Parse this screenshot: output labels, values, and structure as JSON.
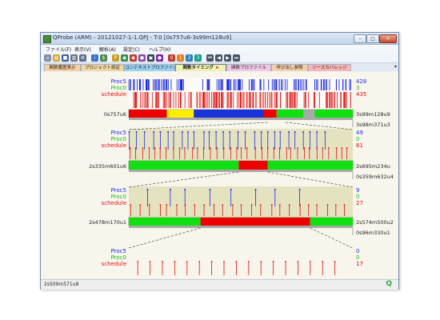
{
  "window": {
    "title": "QProbe (ARM) - 20121027-1-1.QPJ - T:0 [0s757u6-3s99m128u9]",
    "minimize": "–",
    "maximize": "□",
    "close": "×"
  },
  "menu": [
    "ファイル(F)",
    "表示(V)",
    "解析(A)",
    "設定(C)",
    "ヘルプ(H)"
  ],
  "toolbar": {
    "items": [
      {
        "icon": "new-file-icon",
        "glyph": "▫",
        "color": "#7f8fa8"
      },
      {
        "icon": "open-folder-icon",
        "glyph": "▤",
        "color": "#d2a636"
      },
      {
        "icon": "save-icon",
        "glyph": "■",
        "color": "#385f9c"
      },
      {
        "icon": "print-icon",
        "glyph": "▥",
        "color": "#6b7380"
      },
      {
        "icon": "gear-icon",
        "glyph": "⚙",
        "color": "#5b6e8c"
      },
      {
        "icon": "info-icon",
        "glyph": "i",
        "color": "#3b72c4"
      },
      {
        "icon": "dollar-icon",
        "glyph": "$",
        "color": "#4f8a4f"
      },
      {
        "icon": "p-icon",
        "glyph": "P",
        "color": "#c8a020"
      },
      {
        "icon": "profile-icon",
        "glyph": "◉",
        "color": "#2e8b57"
      },
      {
        "icon": "capture-icon",
        "glyph": "◉",
        "color": "#c0392b"
      },
      {
        "icon": "record-icon",
        "glyph": "●",
        "color": "#8e44ad"
      },
      {
        "icon": "chart-icon",
        "glyph": "▣",
        "color": "#2c3e50"
      },
      {
        "icon": "stop-icon",
        "glyph": "●",
        "color": "#7b1fa2"
      },
      {
        "icon": "marker-0-icon",
        "glyph": "0",
        "color": "#c0392b"
      },
      {
        "icon": "marker-1-icon",
        "glyph": "1",
        "color": "#e67e22"
      },
      {
        "icon": "marker-2-icon",
        "glyph": "2",
        "color": "#2980b9"
      },
      {
        "icon": "marker-3-icon",
        "glyph": "3",
        "color": "#16a085"
      },
      {
        "icon": "first-icon",
        "glyph": "⏮",
        "color": "#445566"
      },
      {
        "icon": "prev-icon",
        "glyph": "◀",
        "color": "#445566"
      },
      {
        "icon": "next-icon",
        "glyph": "▶",
        "color": "#445566"
      },
      {
        "icon": "last-icon",
        "glyph": "⏭",
        "color": "#445566"
      }
    ]
  },
  "tabs": [
    {
      "label": "関数履歴表示",
      "color": "#f7cfa3"
    },
    {
      "label": "プロジェクト設定",
      "color": "#f3d6a2"
    },
    {
      "label": "コンテキストプロファイル",
      "color": "#9ad0f0"
    },
    {
      "label": "関数タイミング",
      "color": "#f2f2b0",
      "active": true,
      "close": "×"
    },
    {
      "label": "関数プロファイル",
      "color": "#f3c8e6"
    },
    {
      "label": "呼び出し参照",
      "color": "#f6cfa8"
    },
    {
      "label": "ソースカバレッジ",
      "color": "#f7b6b6"
    }
  ],
  "tab_overflow": "▾",
  "colors": {
    "proc5": "#1f2de0",
    "proc0": "#1dbb1d",
    "schedule": "#e01010",
    "bar_red": "#ee0000",
    "bar_green": "#10e010",
    "bar_yellow": "#ffee00",
    "bar_blue": "#1a33d6",
    "bar_gray": "#a8a8a8",
    "panel_fill": "#d6d29c"
  },
  "panels": [
    {
      "rows": [
        {
          "label": "Proc5",
          "value": "428",
          "color": "#1f2de0"
        },
        {
          "label": "Proc0",
          "value": "3",
          "color": "#1dbb1d"
        },
        {
          "label": "schedule",
          "value": "435",
          "color": "#e01010"
        }
      ],
      "start": "0s757u6",
      "end": "3s99m128u9",
      "span": "3s98m371u3",
      "bar": [
        {
          "from": 0,
          "to": 0.17,
          "c": "bar_red"
        },
        {
          "from": 0.17,
          "to": 0.29,
          "c": "bar_yellow"
        },
        {
          "from": 0.29,
          "to": 0.6,
          "c": "bar_blue"
        },
        {
          "from": 0.6,
          "to": 0.66,
          "c": "bar_red"
        },
        {
          "from": 0.66,
          "to": 0.78,
          "c": "bar_green"
        },
        {
          "from": 0.78,
          "to": 0.83,
          "c": "bar_gray"
        },
        {
          "from": 0.83,
          "to": 1,
          "c": "bar_green"
        }
      ]
    },
    {
      "rows": [
        {
          "label": "Proc5",
          "value": "49",
          "color": "#1f2de0"
        },
        {
          "label": "Proc0",
          "value": "0",
          "color": "#1dbb1d"
        },
        {
          "label": "schedule",
          "value": "61",
          "color": "#e01010"
        }
      ],
      "start": "2s335m601u6",
      "end": "2s695m234u",
      "span": "0s359m632u4",
      "bar": [
        {
          "from": 0,
          "to": 0.49,
          "c": "bar_green"
        },
        {
          "from": 0.49,
          "to": 0.62,
          "c": "bar_red"
        },
        {
          "from": 0.62,
          "to": 1,
          "c": "bar_green"
        }
      ]
    },
    {
      "rows": [
        {
          "label": "Proc5",
          "value": "9",
          "color": "#1f2de0"
        },
        {
          "label": "Proc0",
          "value": "0",
          "color": "#1dbb1d"
        },
        {
          "label": "schedule",
          "value": "27",
          "color": "#e01010"
        }
      ],
      "start": "2s478m170u1",
      "end": "2s574m500u2",
      "span": "0s96m330u1",
      "bar": [
        {
          "from": 0,
          "to": 0.32,
          "c": "bar_green"
        },
        {
          "from": 0.32,
          "to": 0.81,
          "c": "bar_red"
        },
        {
          "from": 0.81,
          "to": 1,
          "c": "bar_green"
        }
      ]
    },
    {
      "rows": [
        {
          "label": "Proc5",
          "value": "0",
          "color": "#1f2de0"
        },
        {
          "label": "Proc0",
          "value": "0",
          "color": "#1dbb1d"
        },
        {
          "label": "schedule",
          "value": "17",
          "color": "#e01010"
        }
      ],
      "bar": []
    }
  ],
  "status": {
    "text": "2s509m571u8",
    "icon": "Q"
  }
}
